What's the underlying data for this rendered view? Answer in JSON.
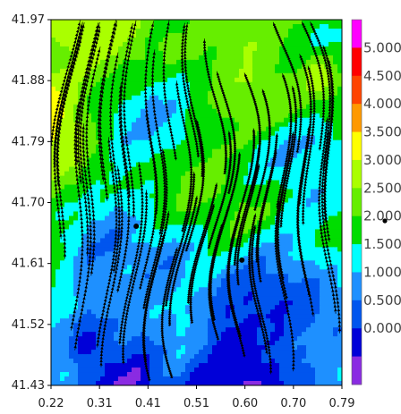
{
  "chart_data": {
    "type": "heatmap",
    "subtype": "filled contour map with streamlines",
    "title": "",
    "xlabel": "",
    "ylabel": "",
    "xlim": [
      0.22,
      0.79
    ],
    "ylim": [
      41.43,
      41.97
    ],
    "x_ticks": [
      "0.22",
      "0.31",
      "0.41",
      "0.51",
      "0.60",
      "0.70",
      "0.79"
    ],
    "y_ticks": [
      "41.97",
      "41.88",
      "41.79",
      "41.70",
      "41.61",
      "41.52",
      "41.43"
    ],
    "colorbar": {
      "levels": [
        -0.5,
        0.0,
        0.5,
        1.0,
        1.5,
        2.0,
        2.5,
        3.0,
        3.5,
        4.0,
        4.5,
        5.0,
        5.5
      ],
      "labels": [
        "5.000",
        "4.500",
        "4.000",
        "3.500",
        "3.000",
        "2.500",
        "2.000",
        "1.500",
        "1.000",
        "0.500",
        "0.000"
      ],
      "colors": [
        "#8a2be2",
        "#0000d8",
        "#0055ee",
        "#1e90ff",
        "#00ffff",
        "#00dd00",
        "#66ee00",
        "#aaff00",
        "#ffff00",
        "#ff9900",
        "#ff4400",
        "#ff0000",
        "#ff00ff"
      ]
    },
    "markers": [
      {
        "x": 0.387,
        "y": 41.665
      },
      {
        "x": 0.594,
        "y": 41.615
      }
    ],
    "field_note": "wind-speed style field; low values (blue) concentrated bottom, high values (green/yellow) top"
  }
}
